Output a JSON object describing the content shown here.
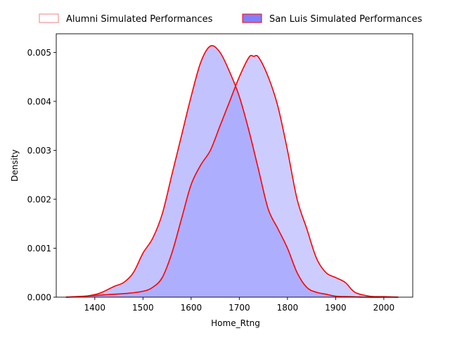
{
  "chart_data": {
    "type": "area",
    "title": "",
    "xlabel": "Home_Rtng",
    "ylabel": "Density",
    "xlim": [
      1320,
      2060
    ],
    "ylim": [
      0,
      0.00538
    ],
    "xticks": [
      1400,
      1500,
      1600,
      1700,
      1800,
      1900,
      2000
    ],
    "xtick_labels": [
      "1400",
      "1500",
      "1600",
      "1700",
      "1800",
      "1900",
      "2000"
    ],
    "yticks": [
      0,
      0.001,
      0.002,
      0.003,
      0.004,
      0.005
    ],
    "ytick_labels": [
      "0.000",
      "0.001",
      "0.002",
      "0.003",
      "0.004",
      "0.005"
    ],
    "grid": false,
    "legend_position": "top-center (outside)",
    "series": [
      {
        "name": "Alumni Simulated Performances",
        "fill_color": "#ccccff",
        "line_color": "#ff0000",
        "legend_fill": "#ffffff",
        "legend_edge": "#f08080",
        "x": [
          1340,
          1380,
          1410,
          1440,
          1470,
          1500,
          1520,
          1540,
          1560,
          1580,
          1600,
          1620,
          1640,
          1660,
          1680,
          1700,
          1720,
          1730,
          1740,
          1760,
          1780,
          1800,
          1820,
          1840,
          1860,
          1880,
          1900,
          1920,
          1940,
          1970,
          2000,
          2030
        ],
        "y": [
          0.0,
          2e-05,
          4e-05,
          6e-05,
          8e-05,
          0.00012,
          0.0002,
          0.0004,
          0.0009,
          0.0016,
          0.0023,
          0.0027,
          0.003,
          0.0035,
          0.004,
          0.0045,
          0.0049,
          0.00492,
          0.0049,
          0.0045,
          0.0039,
          0.003,
          0.002,
          0.0014,
          0.0008,
          0.0005,
          0.0004,
          0.0003,
          0.0001,
          2e-05,
          1e-05,
          0.0
        ]
      },
      {
        "name": "San Luis Simulated Performances",
        "fill_color": "#9999ff",
        "line_color": "#ff0000",
        "legend_fill": "#8080ff",
        "legend_edge": "#ff0000",
        "x": [
          1340,
          1380,
          1410,
          1440,
          1460,
          1480,
          1500,
          1520,
          1540,
          1560,
          1580,
          1600,
          1620,
          1640,
          1660,
          1680,
          1700,
          1720,
          1740,
          1760,
          1780,
          1800,
          1820,
          1840,
          1860,
          1880,
          1900,
          1930,
          1960,
          2000,
          2030
        ],
        "y": [
          0.0,
          2e-05,
          8e-05,
          0.00022,
          0.0003,
          0.0005,
          0.0009,
          0.0012,
          0.0017,
          0.0025,
          0.0033,
          0.0041,
          0.0048,
          0.00513,
          0.005,
          0.0046,
          0.0041,
          0.0034,
          0.0026,
          0.0018,
          0.0014,
          0.001,
          0.0005,
          0.0002,
          0.0001,
          6e-05,
          2e-05,
          1e-05,
          0.0,
          0.0,
          0.0
        ]
      }
    ]
  }
}
